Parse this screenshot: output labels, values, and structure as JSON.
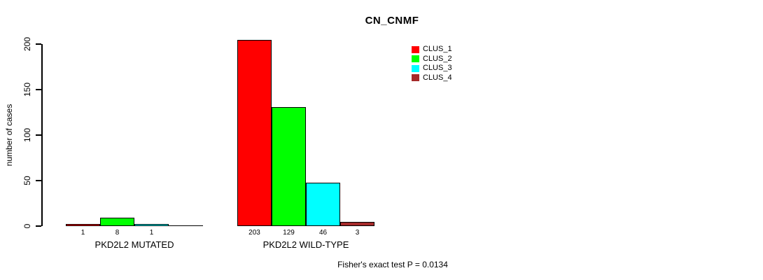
{
  "chart_data": {
    "type": "bar",
    "title": "CN_CNMF",
    "xlabel": "",
    "ylabel": "number of cases",
    "ylim": [
      0,
      200
    ],
    "yticks": [
      0,
      50,
      100,
      150,
      200
    ],
    "grid": false,
    "legend_position": "top-right",
    "categories": [
      "PKD2L2 MUTATED",
      "PKD2L2 WILD-TYPE"
    ],
    "series": [
      {
        "name": "CLUS_1",
        "color": "#ff0000",
        "values": [
          1,
          203
        ]
      },
      {
        "name": "CLUS_2",
        "color": "#00ff00",
        "values": [
          8,
          129
        ]
      },
      {
        "name": "CLUS_3",
        "color": "#00ffff",
        "values": [
          1,
          46
        ]
      },
      {
        "name": "CLUS_4",
        "color": "#a52a2a",
        "values": [
          0,
          3
        ]
      }
    ],
    "bar_value_labels": [
      [
        1,
        8,
        1,
        null
      ],
      [
        203,
        129,
        46,
        3
      ]
    ],
    "annotation": "Fisher's exact test P = 0.0134"
  },
  "colors": {
    "background": "#ffffff",
    "axis": "#000000",
    "text": "#000000"
  }
}
